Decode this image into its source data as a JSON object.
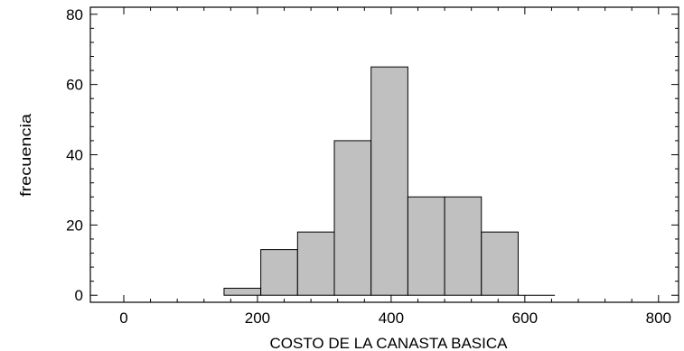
{
  "chart_data": {
    "type": "bar",
    "subtype": "histogram",
    "title": "",
    "xlabel": "COSTO DE LA CANASTA BASICA",
    "ylabel": "frecuencia",
    "xlim": [
      -50,
      830
    ],
    "ylim": [
      -2,
      82
    ],
    "xticks": [
      0,
      200,
      400,
      600,
      800
    ],
    "yticks": [
      0,
      20,
      40,
      60,
      80
    ],
    "grid": false,
    "bins": [
      {
        "x0": 150,
        "x1": 205,
        "count": 2
      },
      {
        "x0": 205,
        "x1": 260,
        "count": 13
      },
      {
        "x0": 260,
        "x1": 315,
        "count": 18
      },
      {
        "x0": 315,
        "x1": 370,
        "count": 44
      },
      {
        "x0": 370,
        "x1": 425,
        "count": 65
      },
      {
        "x0": 425,
        "x1": 480,
        "count": 28
      },
      {
        "x0": 480,
        "x1": 535,
        "count": 28
      },
      {
        "x0": 535,
        "x1": 590,
        "count": 18
      },
      {
        "x0": 590,
        "x1": 645,
        "count": 0
      }
    ],
    "bar_color": "#c0c0c0",
    "edge_color": "#000000"
  }
}
